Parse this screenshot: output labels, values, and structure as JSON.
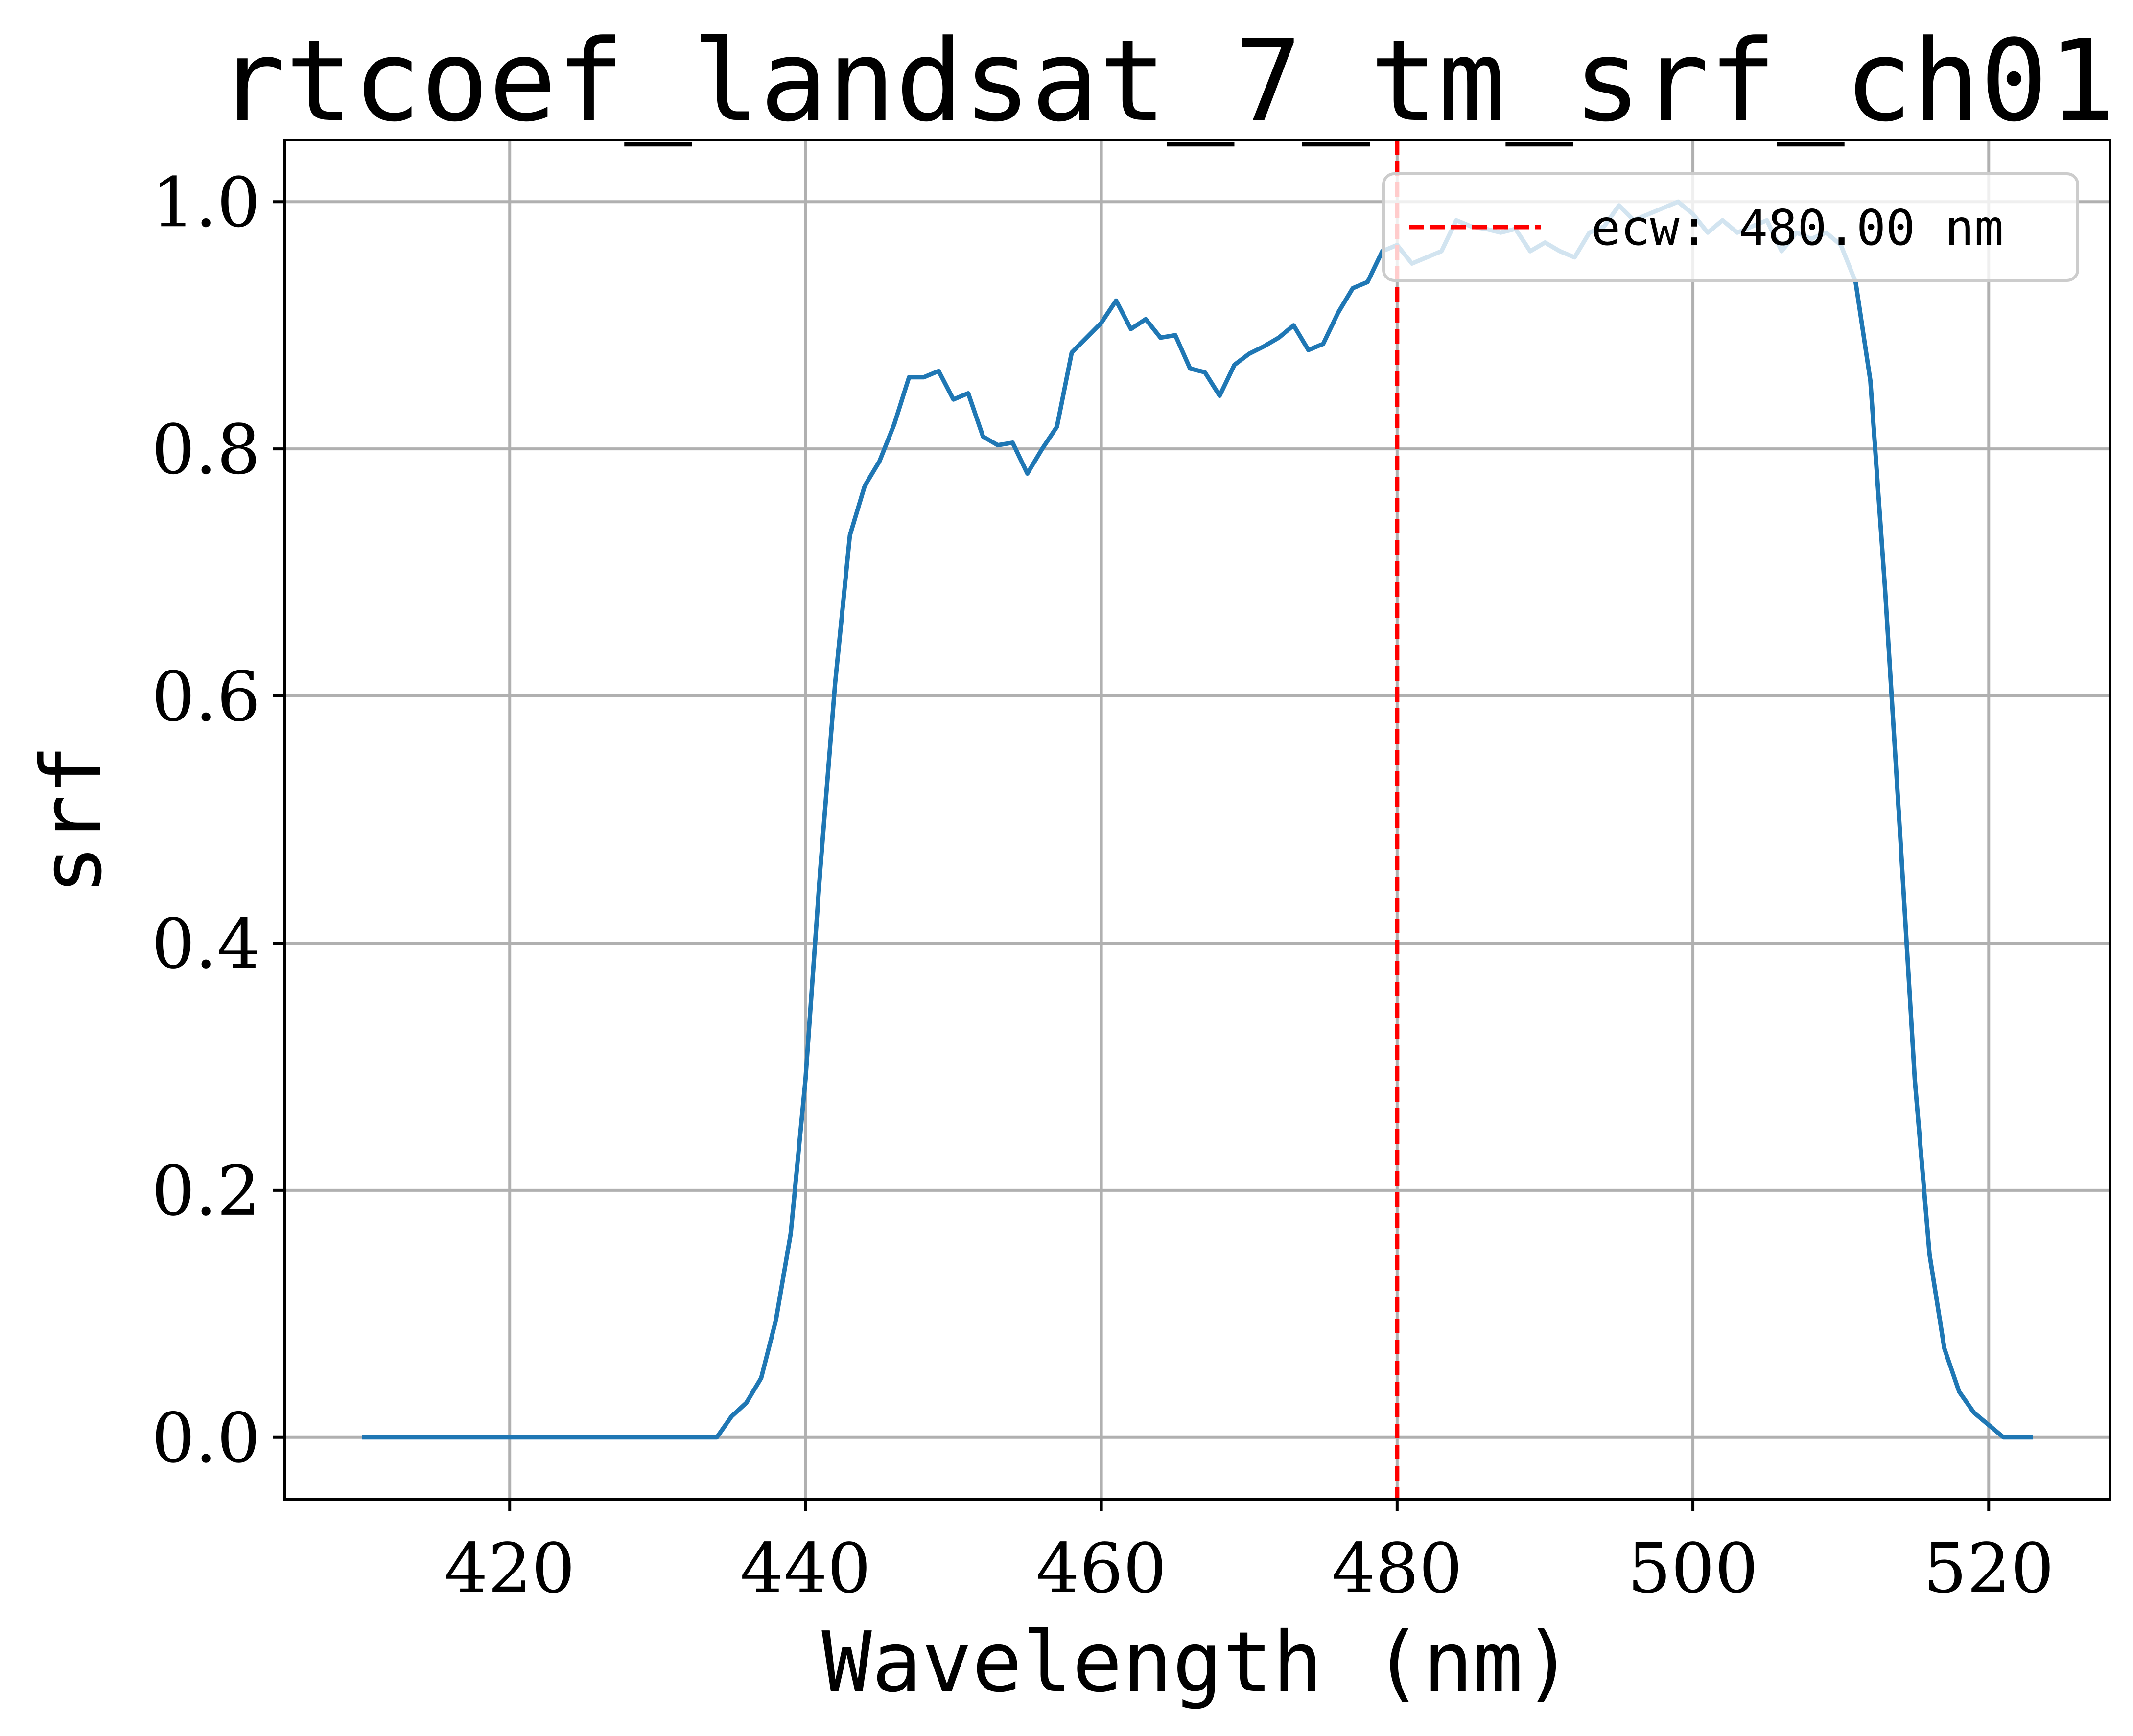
{
  "chart_data": {
    "type": "line",
    "title": "rtcoef_landsat_7_tm_srf_ch01",
    "xlabel": "Wavelength (nm)",
    "ylabel": "srf",
    "xlim": [
      404.8,
      528.2
    ],
    "ylim": [
      -0.05,
      1.05
    ],
    "xticks": [
      420,
      440,
      460,
      480,
      500,
      520
    ],
    "yticks": [
      0.0,
      0.2,
      0.4,
      0.6,
      0.8,
      1.0
    ],
    "xtick_labels": [
      "420",
      "440",
      "460",
      "480",
      "500",
      "520"
    ],
    "ytick_labels": [
      "0.0",
      "0.2",
      "0.4",
      "0.6",
      "0.8",
      "1.0"
    ],
    "grid": true,
    "legend_position": "top-right",
    "series": [
      {
        "color": "#1f77b4",
        "x": [
          410,
          434,
          435,
          436,
          437,
          438,
          439,
          440,
          441,
          442,
          443,
          444,
          445,
          446,
          447,
          448,
          449,
          450,
          451,
          452,
          453,
          454,
          455,
          456,
          457,
          458,
          459,
          460,
          461,
          462,
          463,
          464,
          465,
          466,
          467,
          468,
          469,
          470,
          471,
          472,
          473,
          474,
          475,
          476,
          477,
          478,
          479,
          480,
          481,
          482,
          483,
          484,
          485,
          486,
          487,
          488,
          489,
          490,
          491,
          492,
          493,
          494,
          495,
          496,
          497,
          498,
          499,
          500,
          501,
          502,
          503,
          504,
          505,
          506,
          507,
          508,
          509,
          510,
          511,
          512,
          513,
          514,
          515,
          516,
          517,
          518,
          519,
          520,
          521,
          522,
          523
        ],
        "y": [
          0.0,
          0.0,
          0.017,
          0.028,
          0.048,
          0.095,
          0.165,
          0.29,
          0.46,
          0.61,
          0.73,
          0.77,
          0.79,
          0.82,
          0.858,
          0.858,
          0.863,
          0.84,
          0.845,
          0.81,
          0.803,
          0.805,
          0.78,
          0.8,
          0.818,
          0.878,
          0.89,
          0.902,
          0.92,
          0.897,
          0.905,
          0.89,
          0.892,
          0.865,
          0.862,
          0.843,
          0.868,
          0.877,
          0.883,
          0.89,
          0.9,
          0.88,
          0.885,
          0.91,
          0.93,
          0.935,
          0.96,
          0.965,
          0.95,
          0.955,
          0.96,
          0.985,
          0.98,
          0.978,
          0.975,
          0.978,
          0.96,
          0.967,
          0.96,
          0.955,
          0.975,
          0.98,
          0.997,
          0.985,
          0.99,
          0.995,
          1.0,
          0.99,
          0.975,
          0.985,
          0.975,
          0.98,
          0.985,
          0.96,
          0.975,
          0.97,
          0.975,
          0.965,
          0.935,
          0.855,
          0.685,
          0.49,
          0.29,
          0.148,
          0.072,
          0.037,
          0.02,
          0.01,
          0.0,
          0.0,
          0.0
        ]
      },
      {
        "name": "ecw: 480.00 nm",
        "type": "vline",
        "x": 480.0,
        "color": "#ff0000",
        "style": "dashed"
      }
    ]
  }
}
